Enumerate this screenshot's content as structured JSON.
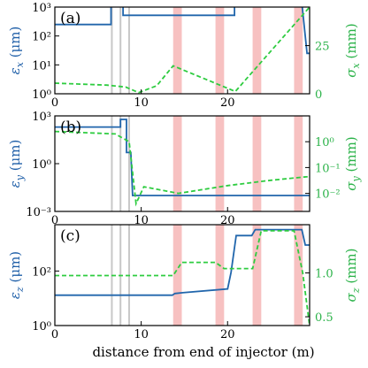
{
  "colors": {
    "left_series": "#2166ac",
    "right_series": "#2ecc40",
    "band_red": "#f4a6a6",
    "band_gray": "#c8c8c8",
    "left_axis": "#1f5fa8",
    "right_axis": "#2cb34a"
  },
  "figure": {
    "xlabel": "distance from end of injector (m)"
  },
  "chart_data": [
    {
      "type": "line",
      "panel": "(a)",
      "xlim": [
        0,
        29.5
      ],
      "x_ticks": [
        0,
        10,
        20
      ],
      "ylabel_left": "εx (μm)",
      "ylabel_left_main": "ε",
      "ylabel_left_sub": "x",
      "ylabel_left_unit": " (μm)",
      "ylim_left": [
        1,
        1000
      ],
      "yscale_left": "log",
      "y_ticks_left": [
        "10⁰",
        "10¹",
        "10²",
        "10³"
      ],
      "ylabel_right": "σx (mm)",
      "ylabel_right_main": "σ",
      "ylabel_right_sub": "x",
      "ylabel_right_unit": " (mm)",
      "ylim_right": [
        0,
        45
      ],
      "yscale_right": "linear",
      "y_ticks_right": [
        "0",
        "25"
      ],
      "shaded_red": [
        [
          13.7,
          14.7
        ],
        [
          18.6,
          19.6
        ],
        [
          22.9,
          23.9
        ],
        [
          27.7,
          28.7
        ]
      ],
      "shaded_gray": [
        6.6,
        7.6,
        8.6
      ],
      "series": [
        {
          "axis": "left",
          "style": "solid",
          "x": [
            0,
            6.5,
            6.5,
            7.9,
            7.9,
            20.8,
            20.8,
            28.6,
            29.2,
            29.5
          ],
          "y": [
            250,
            250,
            1400,
            1400,
            520,
            520,
            1400,
            1400,
            25,
            25
          ]
        },
        {
          "axis": "right",
          "style": "dashed",
          "x": [
            0,
            6,
            8.2,
            9.7,
            11.8,
            13.7,
            20.9,
            29.5
          ],
          "y": [
            5.5,
            4.5,
            3.5,
            0.6,
            4.2,
            14.5,
            1.2,
            45
          ]
        }
      ]
    },
    {
      "type": "line",
      "panel": "(b)",
      "xlim": [
        0,
        29.5
      ],
      "x_ticks": [
        0,
        10,
        20
      ],
      "ylabel_left": "εy (μm)",
      "ylabel_left_main": "ε",
      "ylabel_left_sub": "y",
      "ylabel_left_unit": " (μm)",
      "ylim_left": [
        0.001,
        1000
      ],
      "yscale_left": "log",
      "y_ticks_left": [
        "10⁻³",
        "10⁰",
        "10³"
      ],
      "ylabel_right": "σy (mm)",
      "ylabel_right_main": "σ",
      "ylabel_right_sub": "y",
      "ylabel_right_unit": " (mm)",
      "ylim_right": [
        0.002,
        10
      ],
      "yscale_right": "log",
      "y_ticks_right": [
        "10⁻²",
        "10⁻¹",
        "10⁰"
      ],
      "shaded_red": [
        [
          13.7,
          14.7
        ],
        [
          18.6,
          19.6
        ],
        [
          22.9,
          23.9
        ],
        [
          27.7,
          28.7
        ]
      ],
      "shaded_gray": [
        6.6,
        7.6,
        8.6
      ],
      "series": [
        {
          "axis": "left",
          "style": "solid",
          "x": [
            0,
            7.6,
            7.6,
            8.3,
            8.3,
            8.8,
            9.0,
            29.5
          ],
          "y": [
            200,
            200,
            600,
            600,
            5,
            5,
            0.01,
            0.01
          ]
        },
        {
          "axis": "right",
          "style": "dashed",
          "x": [
            0,
            7.0,
            8.6,
            9.4,
            10.3,
            14.3,
            20.0,
            25.0,
            29.5
          ],
          "y": [
            2.5,
            2.0,
            1.0,
            0.004,
            0.018,
            0.01,
            0.02,
            0.032,
            0.045
          ]
        }
      ]
    },
    {
      "type": "line",
      "panel": "(c)",
      "xlim": [
        0,
        29.5
      ],
      "x_ticks": [
        0,
        10,
        20
      ],
      "ylabel_left": "εz (μm)",
      "ylabel_left_main": "ε",
      "ylabel_left_sub": "z",
      "ylabel_left_unit": " (μm)",
      "ylim_left": [
        1,
        5000
      ],
      "yscale_left": "log",
      "y_ticks_left": [
        "10⁰",
        "10²"
      ],
      "ylabel_right": "σz (mm)",
      "ylabel_right_main": "σ",
      "ylabel_right_sub": "z",
      "ylabel_right_unit": " (mm)",
      "ylim_right": [
        0.4,
        1.55
      ],
      "yscale_right": "linear",
      "y_ticks_right": [
        "0.5",
        "1.0"
      ],
      "shaded_red": [
        [
          13.7,
          14.7
        ],
        [
          18.6,
          19.6
        ],
        [
          22.9,
          23.9
        ],
        [
          27.7,
          28.7
        ]
      ],
      "shaded_gray": [
        6.6,
        7.6,
        8.6
      ],
      "series": [
        {
          "axis": "left",
          "style": "solid",
          "x": [
            0,
            13.6,
            13.9,
            14.8,
            20.0,
            20.4,
            21.0,
            22.8,
            23.2,
            28.6,
            29.0,
            29.5
          ],
          "y": [
            13,
            13,
            15,
            16,
            22,
            90,
            2000,
            2000,
            3300,
            3300,
            900,
            900
          ]
        },
        {
          "axis": "right",
          "style": "dashed",
          "x": [
            0,
            13.7,
            14.7,
            18.6,
            19.6,
            22.9,
            23.9,
            27.7,
            28.7,
            29.5
          ],
          "y": [
            0.97,
            0.97,
            1.12,
            1.12,
            1.05,
            1.05,
            1.48,
            1.48,
            1.0,
            0.4
          ]
        }
      ]
    }
  ]
}
